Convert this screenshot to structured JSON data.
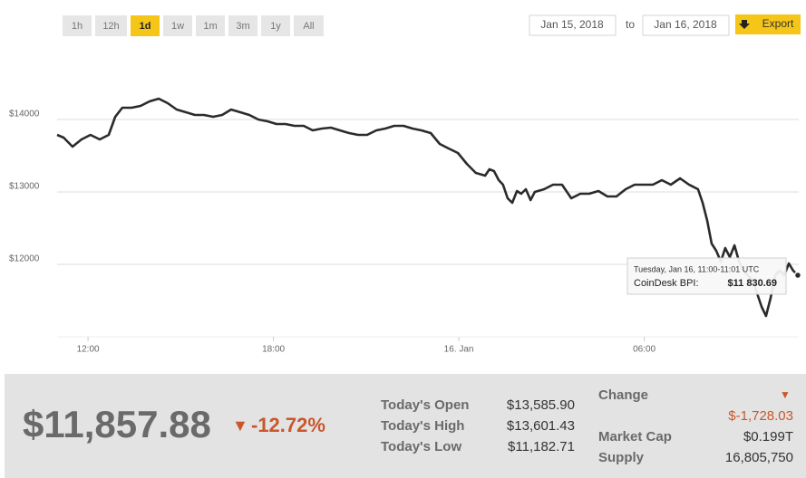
{
  "toolbar": {
    "ranges": [
      "1h",
      "12h",
      "1d",
      "1w",
      "1m",
      "3m",
      "1y",
      "All"
    ],
    "active_range": "1d",
    "date_from": "Jan 15, 2018",
    "date_to_label": "to",
    "date_to": "Jan 16, 2018",
    "export": "Export"
  },
  "chart_data": {
    "type": "line",
    "color": "#2b2b2b",
    "grid": true,
    "xlim": [
      11,
      35
    ],
    "xticks": [
      {
        "value": 12,
        "label": "12:00"
      },
      {
        "value": 18,
        "label": "18:00"
      },
      {
        "value": 24,
        "label": "16. Jan"
      },
      {
        "value": 30,
        "label": "06:00"
      }
    ],
    "ylim": [
      11025,
      15000
    ],
    "yticks": [
      {
        "value": 12000,
        "label": "$12000"
      },
      {
        "value": 13000,
        "label": "$13000"
      },
      {
        "value": 14000,
        "label": "$14000"
      }
    ],
    "x": [
      11.0,
      11.21,
      11.5,
      11.79,
      12.08,
      12.38,
      12.67,
      12.88,
      13.11,
      13.41,
      13.7,
      13.99,
      14.29,
      14.58,
      14.87,
      15.17,
      15.46,
      15.75,
      16.05,
      16.34,
      16.63,
      16.93,
      17.22,
      17.51,
      17.81,
      18.1,
      18.39,
      18.68,
      18.98,
      19.27,
      19.57,
      19.86,
      20.15,
      20.45,
      20.74,
      21.03,
      21.33,
      21.62,
      21.91,
      22.21,
      22.5,
      22.79,
      23.09,
      23.38,
      23.67,
      23.97,
      24.26,
      24.55,
      24.85,
      24.99,
      25.14,
      25.29,
      25.43,
      25.58,
      25.73,
      25.88,
      26.02,
      26.17,
      26.32,
      26.46,
      26.76,
      27.05,
      27.34,
      27.64,
      27.93,
      28.22,
      28.52,
      28.81,
      29.1,
      29.4,
      29.69,
      29.98,
      30.28,
      30.57,
      30.86,
      31.16,
      31.45,
      31.74,
      31.89,
      32.04,
      32.18,
      32.33,
      32.48,
      32.62,
      32.77,
      32.92,
      33.07,
      33.21,
      33.5,
      33.65,
      33.8,
      33.94,
      34.09,
      34.24,
      34.38,
      34.53,
      34.68,
      34.82,
      34.97
    ],
    "values": [
      13788,
      13750,
      13625,
      13725,
      13788,
      13725,
      13788,
      14038,
      14163,
      14163,
      14188,
      14250,
      14288,
      14225,
      14138,
      14100,
      14063,
      14063,
      14038,
      14063,
      14138,
      14100,
      14063,
      14000,
      13975,
      13938,
      13938,
      13913,
      13913,
      13850,
      13875,
      13888,
      13850,
      13813,
      13788,
      13788,
      13850,
      13875,
      13913,
      13913,
      13875,
      13850,
      13813,
      13663,
      13600,
      13538,
      13388,
      13263,
      13225,
      13313,
      13288,
      13163,
      13100,
      12913,
      12850,
      13013,
      12975,
      13038,
      12888,
      13000,
      13038,
      13100,
      13100,
      12913,
      12975,
      12975,
      13013,
      12938,
      12938,
      13038,
      13100,
      13100,
      13100,
      13163,
      13100,
      13188,
      13100,
      13038,
      12850,
      12600,
      12288,
      12188,
      12038,
      12225,
      12100,
      12263,
      12038,
      11913,
      11788,
      11600,
      11413,
      11288,
      11538,
      11850,
      11913,
      11850,
      12013,
      11913,
      11850
    ],
    "tooltip": {
      "title": "Tuesday, Jan 16, 11:00-11:01 UTC",
      "label": "CoinDesk BPI:",
      "value": "$11 830.69"
    }
  },
  "summary": {
    "price": "$11,857.88",
    "change_arrow": "▼",
    "change_pct": "-12.72%",
    "stats": [
      {
        "label": "Today's Open",
        "value": "$13,585.90"
      },
      {
        "label": "Today's High",
        "value": "$13,601.43"
      },
      {
        "label": "Today's Low",
        "value": "$11,182.71"
      }
    ],
    "change": {
      "label": "Change",
      "arrow": "▼",
      "value": "$-1,728.03"
    },
    "market_cap": {
      "label": "Market Cap",
      "value": "$0.199T"
    },
    "supply": {
      "label": "Supply",
      "value": "16,805,750"
    }
  }
}
